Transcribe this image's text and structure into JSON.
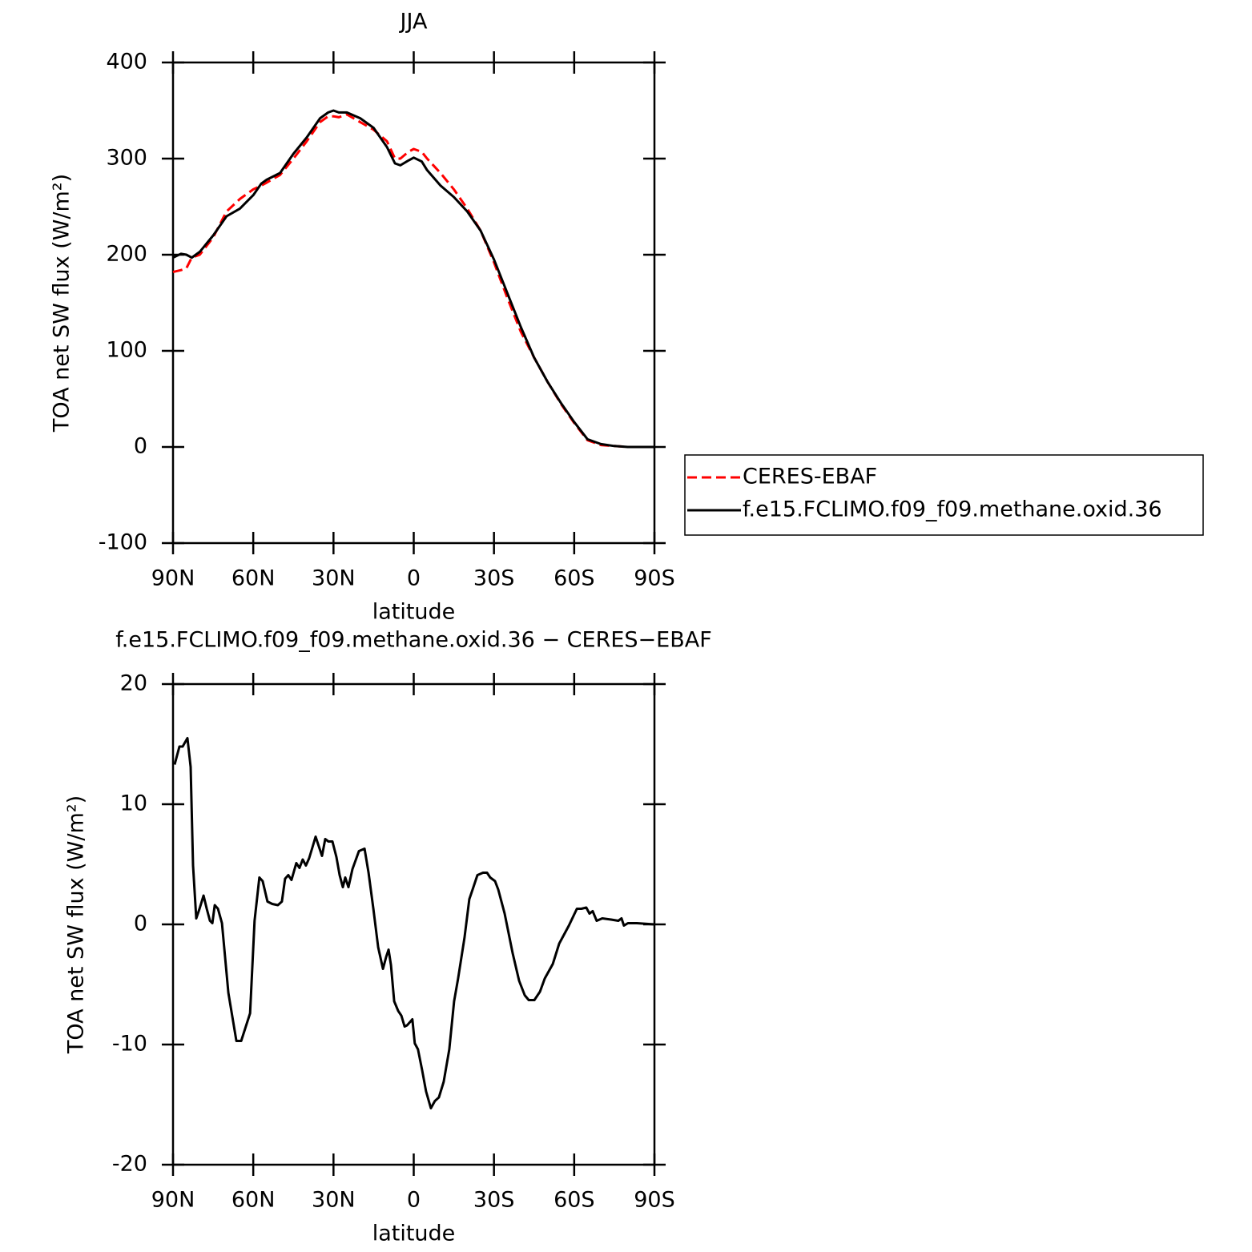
{
  "chart_data": [
    {
      "type": "line",
      "title": "JJA",
      "xlabel": "latitude",
      "ylabel": "TOA net SW flux (W/m²)",
      "xlim": [
        90,
        -90
      ],
      "xticks": [
        {
          "value": 90,
          "label": "90N"
        },
        {
          "value": 60,
          "label": "60N"
        },
        {
          "value": 30,
          "label": "30N"
        },
        0,
        {
          "value": -30,
          "label": "30S"
        },
        {
          "value": -60,
          "label": "60S"
        },
        {
          "value": -90,
          "label": "90S"
        }
      ],
      "ylim": [
        -100,
        400
      ],
      "yticks": [
        -100,
        0,
        100,
        200,
        300,
        400
      ],
      "legend": "right",
      "x": [
        90,
        87,
        85,
        83,
        80,
        75,
        70,
        65,
        60,
        57,
        55,
        50,
        45,
        40,
        35,
        32,
        30,
        28,
        25,
        20,
        15,
        10,
        7,
        5,
        2,
        0,
        -3,
        -5,
        -10,
        -15,
        -20,
        -25,
        -30,
        -35,
        -40,
        -45,
        -50,
        -55,
        -60,
        -65,
        -70,
        -75,
        -80,
        -90
      ],
      "series": [
        {
          "name": "CERES-EBAF",
          "color": "#ff0000",
          "line_style": "dashed",
          "values": [
            182,
            184,
            186,
            197,
            200,
            218,
            245,
            258,
            268,
            272,
            275,
            283,
            300,
            318,
            338,
            344,
            344,
            343,
            346,
            338,
            330,
            318,
            300,
            300,
            307,
            310,
            307,
            300,
            285,
            268,
            248,
            225,
            192,
            155,
            120,
            93,
            68,
            45,
            25,
            7,
            2,
            1,
            0,
            0
          ]
        },
        {
          "name": "f.e15.FCLIMO.f09_f09.methane.oxid.36",
          "color": "#000000",
          "line_style": "solid",
          "values": [
            197,
            201,
            200,
            197,
            203,
            220,
            240,
            248,
            262,
            274,
            278,
            285,
            305,
            322,
            342,
            348,
            350,
            348,
            348,
            342,
            332,
            312,
            295,
            293,
            298,
            301,
            297,
            288,
            272,
            260,
            245,
            225,
            195,
            160,
            125,
            93,
            68,
            46,
            26,
            8,
            3,
            1,
            0,
            0
          ]
        }
      ]
    },
    {
      "type": "line",
      "title": "f.e15.FCLIMO.f09_f09.methane.oxid.36 − CERES−EBAF",
      "xlabel": "latitude",
      "ylabel": "TOA net SW flux (W/m²)",
      "xlim": [
        90,
        -90
      ],
      "xticks": [
        {
          "value": 90,
          "label": "90N"
        },
        {
          "value": 60,
          "label": "60N"
        },
        {
          "value": 30,
          "label": "30N"
        },
        0,
        {
          "value": -30,
          "label": "30S"
        },
        {
          "value": -60,
          "label": "60S"
        },
        {
          "value": -90,
          "label": "90S"
        }
      ],
      "ylim": [
        -20,
        20
      ],
      "yticks": [
        -20,
        -10,
        0,
        10,
        20
      ],
      "x": [
        89.4,
        87.6,
        86.4,
        84.6,
        83.4,
        82.5,
        81.3,
        80.1,
        78.6,
        77.4,
        76.2,
        75.3,
        74.4,
        73.2,
        71.7,
        69.3,
        67.5,
        66.3,
        64.5,
        61.2,
        59.5,
        57.7,
        56.5,
        54.7,
        52.9,
        50.8,
        49.3,
        48.1,
        46.9,
        45.7,
        43.9,
        42.7,
        41.5,
        40.3,
        39.1,
        37.9,
        36.7,
        35.5,
        34.3,
        33.1,
        31.9,
        30.4,
        28.9,
        27.7,
        26.5,
        25.6,
        24.4,
        22.9,
        20.5,
        18.4,
        16.9,
        15.1,
        13.3,
        11.5,
        10.3,
        9.4,
        8.5,
        7.3,
        5.8,
        4.6,
        3.4,
        2.5,
        1.3,
        0.5,
        -0.4,
        -1.6,
        -3.1,
        -4.6,
        -6.4,
        -7.9,
        -9.4,
        -11.2,
        -13.3,
        -15.1,
        -16.6,
        -19.0,
        -20.8,
        -22.0,
        -23.8,
        -25.9,
        -27.4,
        -28.6,
        -30.4,
        -31.6,
        -34.0,
        -37.0,
        -39.4,
        -41.5,
        -43.0,
        -45.1,
        -47.2,
        -49.0,
        -52.0,
        -54.4,
        -58.0,
        -61.0,
        -62.7,
        -64.5,
        -65.7,
        -66.9,
        -68.4,
        -70.5,
        -73.8,
        -76.5,
        -77.7,
        -78.6,
        -80.1,
        -83.4,
        -90
      ],
      "series": [
        {
          "color": "#000000",
          "line_style": "solid",
          "values": [
            13.3,
            14.8,
            14.8,
            15.5,
            13.1,
            4.9,
            0.5,
            1.3,
            2.4,
            1.3,
            0.3,
            0.1,
            1.6,
            1.3,
            0.1,
            -5.7,
            -8.1,
            -9.7,
            -9.7,
            -7.4,
            0.3,
            3.9,
            3.6,
            1.9,
            1.7,
            1.6,
            1.9,
            3.8,
            4.1,
            3.7,
            5.1,
            4.7,
            5.4,
            4.9,
            5.5,
            6.4,
            7.3,
            6.5,
            5.7,
            7.1,
            6.9,
            6.9,
            5.6,
            4.1,
            3.1,
            3.9,
            3.1,
            4.6,
            6.1,
            6.3,
            4.3,
            1.3,
            -1.9,
            -3.7,
            -2.7,
            -2.1,
            -3.4,
            -6.4,
            -7.2,
            -7.6,
            -8.5,
            -8.4,
            -8.1,
            -7.9,
            -9.9,
            -10.4,
            -12.1,
            -13.9,
            -15.3,
            -14.7,
            -14.4,
            -13.1,
            -10.4,
            -6.4,
            -4.5,
            -1.1,
            2.1,
            2.9,
            4.1,
            4.3,
            4.3,
            3.9,
            3.6,
            2.9,
            0.9,
            -2.4,
            -4.7,
            -5.9,
            -6.3,
            -6.3,
            -5.6,
            -4.5,
            -3.3,
            -1.6,
            -0.1,
            1.3,
            1.3,
            1.4,
            0.9,
            1.1,
            0.3,
            0.5,
            0.4,
            0.3,
            0.5,
            -0.1,
            0.1,
            0.1,
            0
          ]
        }
      ]
    }
  ]
}
